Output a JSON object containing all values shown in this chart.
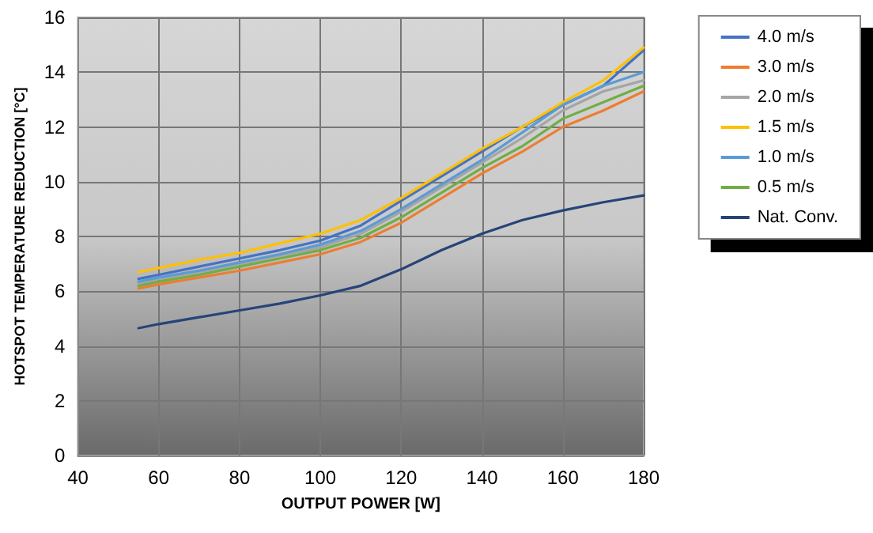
{
  "chart_data": {
    "type": "line",
    "xlabel": "OUTPUT POWER [W]",
    "ylabel": "HOTSPOT TEMPERATURE REDUCTION [°C]",
    "x": [
      55,
      60,
      70,
      80,
      90,
      100,
      110,
      120,
      130,
      140,
      150,
      160,
      170,
      180
    ],
    "series": [
      {
        "name": "4.0 m/s",
        "color": "#4472c4",
        "values": [
          6.45,
          6.6,
          6.9,
          7.2,
          7.5,
          7.85,
          8.4,
          9.3,
          10.2,
          11.1,
          12.0,
          12.8,
          13.5,
          14.8
        ]
      },
      {
        "name": "3.0 m/s",
        "color": "#ed7d31",
        "values": [
          6.1,
          6.25,
          6.5,
          6.75,
          7.05,
          7.35,
          7.8,
          8.5,
          9.4,
          10.3,
          11.1,
          12.0,
          12.6,
          13.3
        ]
      },
      {
        "name": "2.0 m/s",
        "color": "#a5a5a5",
        "values": [
          6.3,
          6.45,
          6.7,
          7.0,
          7.3,
          7.6,
          8.1,
          8.9,
          9.8,
          10.7,
          11.6,
          12.6,
          13.3,
          13.7
        ]
      },
      {
        "name": "1.5 m/s",
        "color": "#ffc000",
        "values": [
          6.7,
          6.85,
          7.15,
          7.4,
          7.75,
          8.1,
          8.6,
          9.4,
          10.3,
          11.2,
          12.0,
          12.9,
          13.7,
          14.9
        ]
      },
      {
        "name": "1.0 m/s",
        "color": "#5b9bd5",
        "values": [
          6.35,
          6.5,
          6.75,
          7.05,
          7.35,
          7.7,
          8.2,
          9.0,
          9.9,
          10.8,
          11.8,
          12.8,
          13.5,
          14.0
        ]
      },
      {
        "name": "0.5 m/s",
        "color": "#70ad47",
        "values": [
          6.2,
          6.35,
          6.6,
          6.9,
          7.2,
          7.5,
          7.95,
          8.7,
          9.6,
          10.5,
          11.3,
          12.3,
          12.9,
          13.5
        ]
      },
      {
        "name": "Nat. Conv.",
        "color": "#264478",
        "values": [
          4.65,
          4.8,
          5.05,
          5.3,
          5.55,
          5.85,
          6.2,
          6.8,
          7.5,
          8.1,
          8.6,
          8.95,
          9.25,
          9.5
        ]
      }
    ],
    "xlim": [
      40,
      180
    ],
    "xticks": [
      40,
      60,
      80,
      100,
      120,
      140,
      160,
      180
    ],
    "ylim": [
      0,
      16
    ],
    "yticks": [
      0,
      2,
      4,
      6,
      8,
      10,
      12,
      14,
      16
    ],
    "grid": true,
    "legend": "right",
    "marker": "none",
    "line_style": "solid"
  }
}
